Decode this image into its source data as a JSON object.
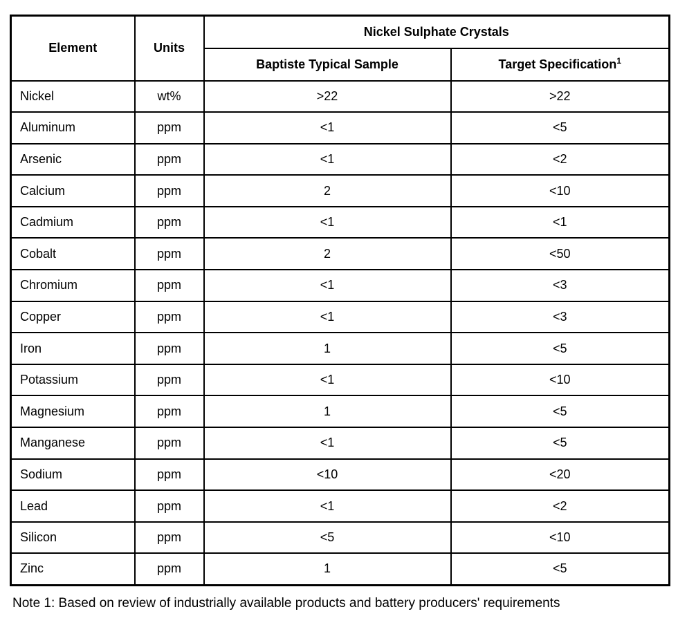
{
  "document": {
    "table": {
      "header": {
        "element": "Element",
        "units": "Units",
        "group_title": "Nickel Sulphate Crystals",
        "sample_col": "Baptiste Typical Sample",
        "target_col": "Target Specification",
        "target_footnote_marker": "1"
      },
      "rows": [
        {
          "element": "Nickel",
          "units": "wt%",
          "sample": ">22",
          "target": ">22"
        },
        {
          "element": "Aluminum",
          "units": "ppm",
          "sample": "<1",
          "target": "<5"
        },
        {
          "element": "Arsenic",
          "units": "ppm",
          "sample": "<1",
          "target": "<2"
        },
        {
          "element": "Calcium",
          "units": "ppm",
          "sample": "2",
          "target": "<10"
        },
        {
          "element": "Cadmium",
          "units": "ppm",
          "sample": "<1",
          "target": "<1"
        },
        {
          "element": "Cobalt",
          "units": "ppm",
          "sample": "2",
          "target": "<50"
        },
        {
          "element": "Chromium",
          "units": "ppm",
          "sample": "<1",
          "target": "<3"
        },
        {
          "element": "Copper",
          "units": "ppm",
          "sample": "<1",
          "target": "<3"
        },
        {
          "element": "Iron",
          "units": "ppm",
          "sample": "1",
          "target": "<5"
        },
        {
          "element": "Potassium",
          "units": "ppm",
          "sample": "<1",
          "target": "<10"
        },
        {
          "element": "Magnesium",
          "units": "ppm",
          "sample": "1",
          "target": "<5"
        },
        {
          "element": "Manganese",
          "units": "ppm",
          "sample": "<1",
          "target": "<5"
        },
        {
          "element": "Sodium",
          "units": "ppm",
          "sample": "<10",
          "target": "<20"
        },
        {
          "element": "Lead",
          "units": "ppm",
          "sample": "<1",
          "target": "<2"
        },
        {
          "element": "Silicon",
          "units": "ppm",
          "sample": "<5",
          "target": "<10"
        },
        {
          "element": "Zinc",
          "units": "ppm",
          "sample": "1",
          "target": "<5"
        }
      ],
      "note": "Note 1: Based on review of industrially available products and battery producers' requirements"
    },
    "colors": {
      "border": "#000000",
      "background": "#ffffff",
      "text": "#000000"
    }
  }
}
